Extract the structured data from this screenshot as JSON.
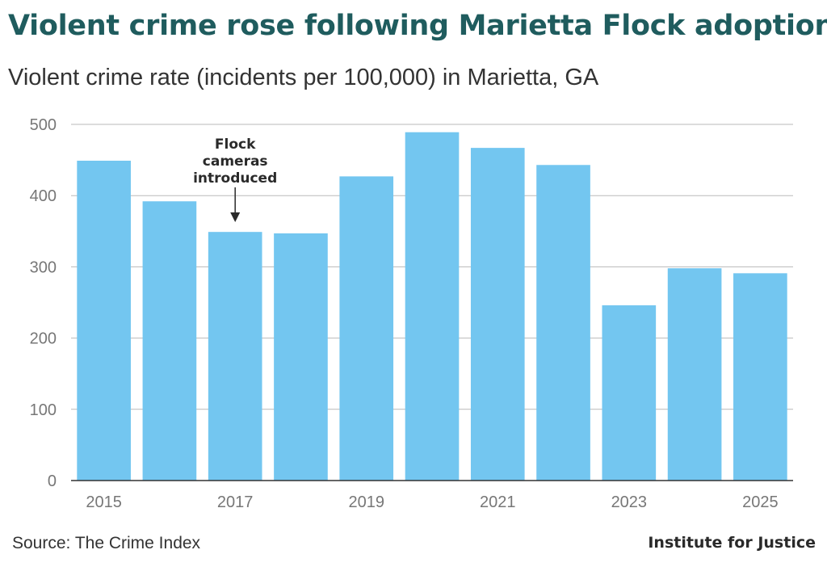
{
  "title": "Violent crime rose following Marietta Flock adoption",
  "subtitle": "Violent crime rate (incidents per 100,000) in Marietta, GA",
  "source": "Source: The Crime Index",
  "brand": "Institute for Justice",
  "colors": {
    "bar": "#73c6f0",
    "title": "#1f5c5e",
    "grid": "#b9b9b9",
    "axis": "#333333",
    "tick_text": "#777777"
  },
  "chart_data": {
    "type": "bar",
    "categories": [
      "2015",
      "2016",
      "2017",
      "2018",
      "2019",
      "2020",
      "2021",
      "2022",
      "2023",
      "2024",
      "2025"
    ],
    "values": [
      449,
      392,
      349,
      347,
      427,
      489,
      467,
      443,
      246,
      298,
      291
    ],
    "x_tick_labels": [
      "2015",
      "2017",
      "2019",
      "2021",
      "2023",
      "2025"
    ],
    "y_ticks": [
      0,
      100,
      200,
      300,
      400,
      500
    ],
    "ylim": [
      0,
      500
    ],
    "grid": true,
    "xlabel": "",
    "ylabel": "",
    "annotation": {
      "category": "2017",
      "lines": [
        "Flock",
        "cameras",
        "introduced"
      ]
    }
  }
}
